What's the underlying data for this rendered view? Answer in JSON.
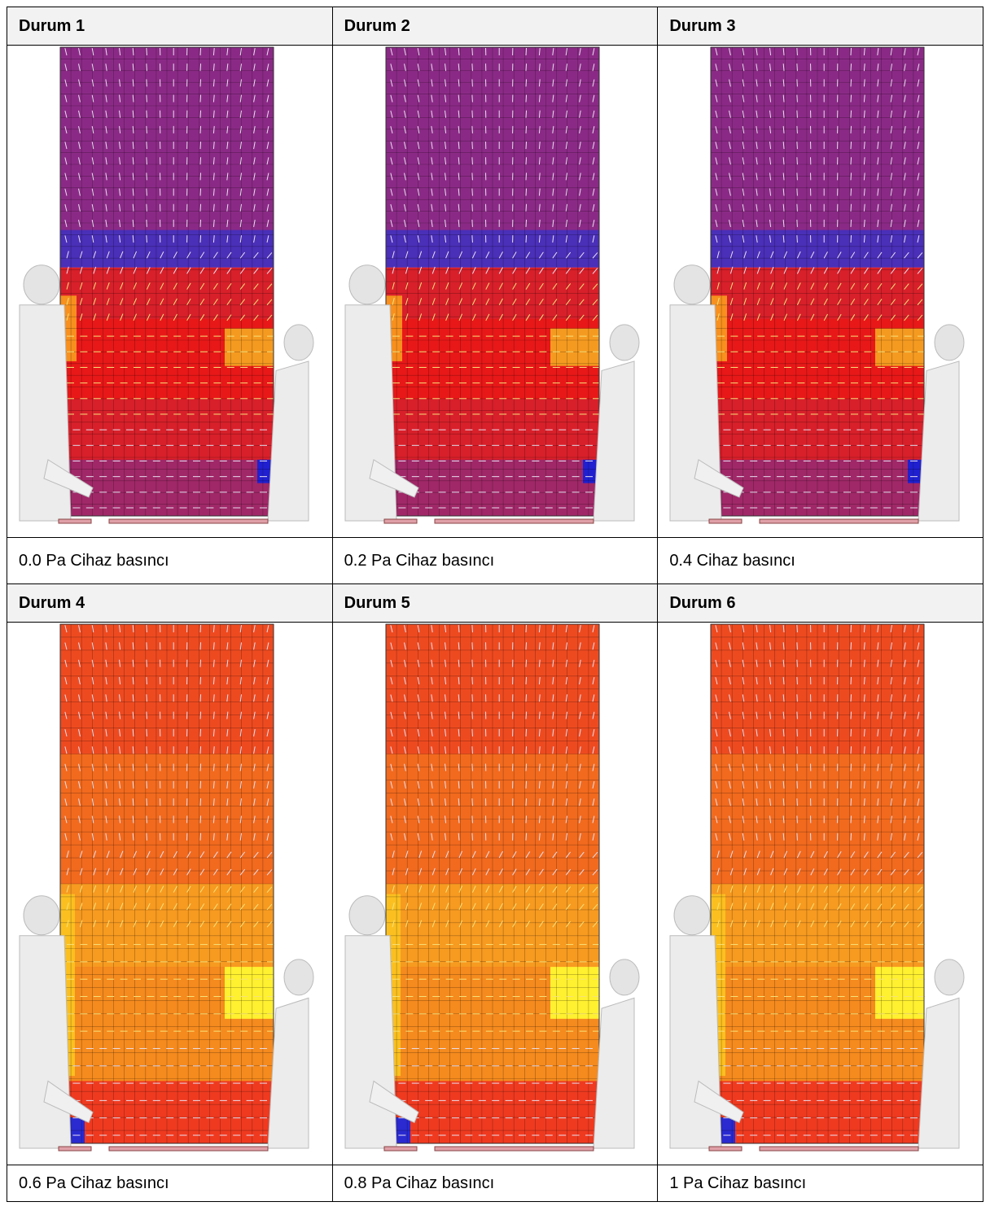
{
  "cells": [
    {
      "title": "Durum 1",
      "caption": "0.0 Pa Cihaz basıncı"
    },
    {
      "title": "Durum 2",
      "caption": "0.2 Pa Cihaz basıncı"
    },
    {
      "title": "Durum 3",
      "caption": "0.4 Cihaz basıncı"
    },
    {
      "title": "Durum 4",
      "caption": "0.6 Pa Cihaz basıncı"
    },
    {
      "title": "Durum 5",
      "caption": "0.8 Pa Cihaz basıncı"
    },
    {
      "title": "Durum 6",
      "caption": "1 Pa Cihaz basıncı"
    }
  ]
}
